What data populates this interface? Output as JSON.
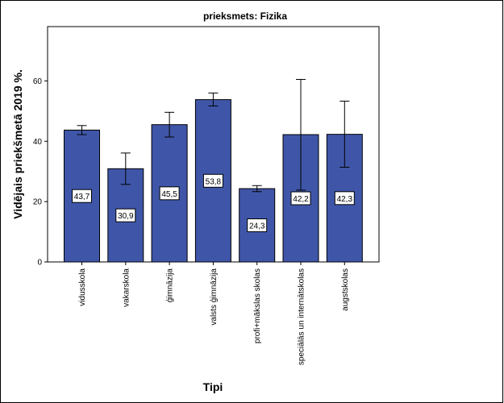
{
  "chart_data": {
    "type": "bar",
    "title": "prieksmets: Fizika",
    "xlabel": "Tipi",
    "ylabel": "Vidējais priekšmetā 2019 %.",
    "categories": [
      "vidusskola",
      "vakarskola",
      "ģimnāzija",
      "valsts ģimnāzija",
      "profi+mākslas skolas",
      "speciālās un internātskolas",
      "augstskolas"
    ],
    "values": [
      43.7,
      30.9,
      45.5,
      53.8,
      24.3,
      42.2,
      42.3
    ],
    "value_labels": [
      "43,7",
      "30,9",
      "45,5",
      "53,8",
      "24,3",
      "42,2",
      "42,3"
    ],
    "error_bars": [
      {
        "low": 42.2,
        "high": 45.2
      },
      {
        "low": 25.7,
        "high": 36.1
      },
      {
        "low": 41.4,
        "high": 49.6
      },
      {
        "low": 51.7,
        "high": 56.0
      },
      {
        "low": 23.3,
        "high": 25.3
      },
      {
        "low": 23.8,
        "high": 60.5
      },
      {
        "low": 31.4,
        "high": 53.3
      }
    ],
    "ylim": [
      0,
      78
    ],
    "yticks": [
      0,
      20,
      40,
      60
    ],
    "ytick_labels": [
      "0",
      "20",
      "40",
      "60"
    ],
    "grid": false,
    "colors": {
      "bar": "#3f56a8",
      "bar_edge": "#000000"
    }
  }
}
